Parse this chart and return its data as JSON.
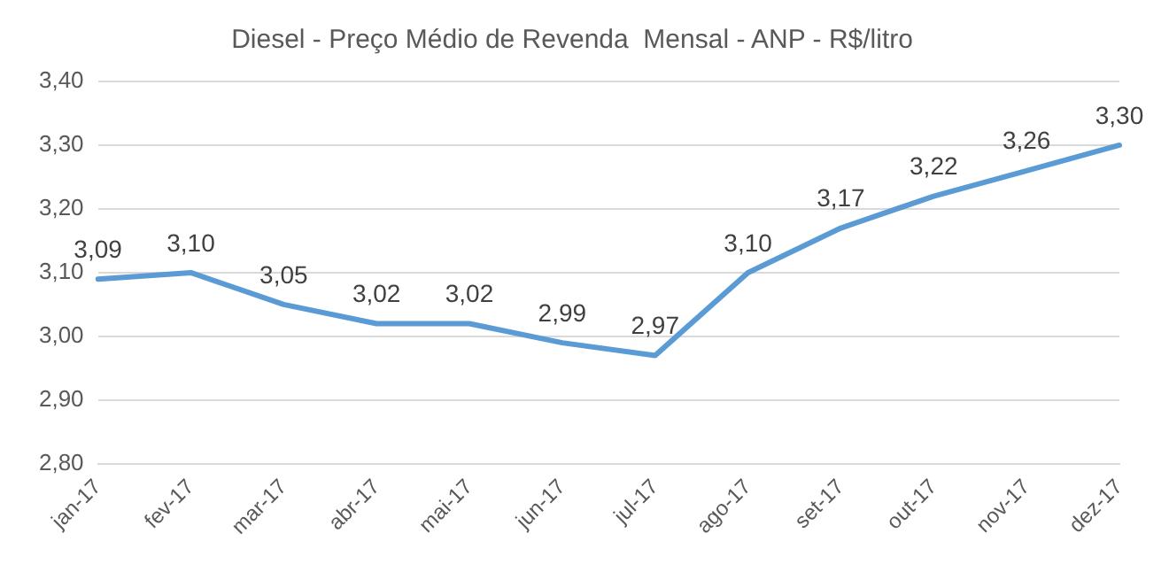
{
  "chart_data": {
    "type": "line",
    "title": "Diesel - Preço Médio de Revenda  Mensal - ANP - R$/litro",
    "categories": [
      "jan-17",
      "fev-17",
      "mar-17",
      "abr-17",
      "mai-17",
      "jun-17",
      "jul-17",
      "ago-17",
      "set-17",
      "out-17",
      "nov-17",
      "dez-17"
    ],
    "series": [
      {
        "color": "#5b9bd5",
        "values": [
          3.09,
          3.1,
          3.05,
          3.02,
          3.02,
          2.99,
          2.97,
          3.1,
          3.17,
          3.22,
          3.26,
          3.3
        ],
        "value_labels": [
          "3,09",
          "3,10",
          "3,05",
          "3,02",
          "3,02",
          "2,99",
          "2,97",
          "3,10",
          "3,17",
          "3,22",
          "3,26",
          "3,30"
        ]
      }
    ],
    "ylim": [
      2.8,
      3.4
    ],
    "yticks": [
      {
        "value": 2.8,
        "label": "2,80"
      },
      {
        "value": 2.9,
        "label": "2,90"
      },
      {
        "value": 3.0,
        "label": "3,00"
      },
      {
        "value": 3.1,
        "label": "3,10"
      },
      {
        "value": 3.2,
        "label": "3,20"
      },
      {
        "value": 3.3,
        "label": "3,30"
      },
      {
        "value": 3.4,
        "label": "3,40"
      }
    ],
    "grid": "y",
    "legend": false,
    "marker": "none",
    "line_style": "solid"
  }
}
